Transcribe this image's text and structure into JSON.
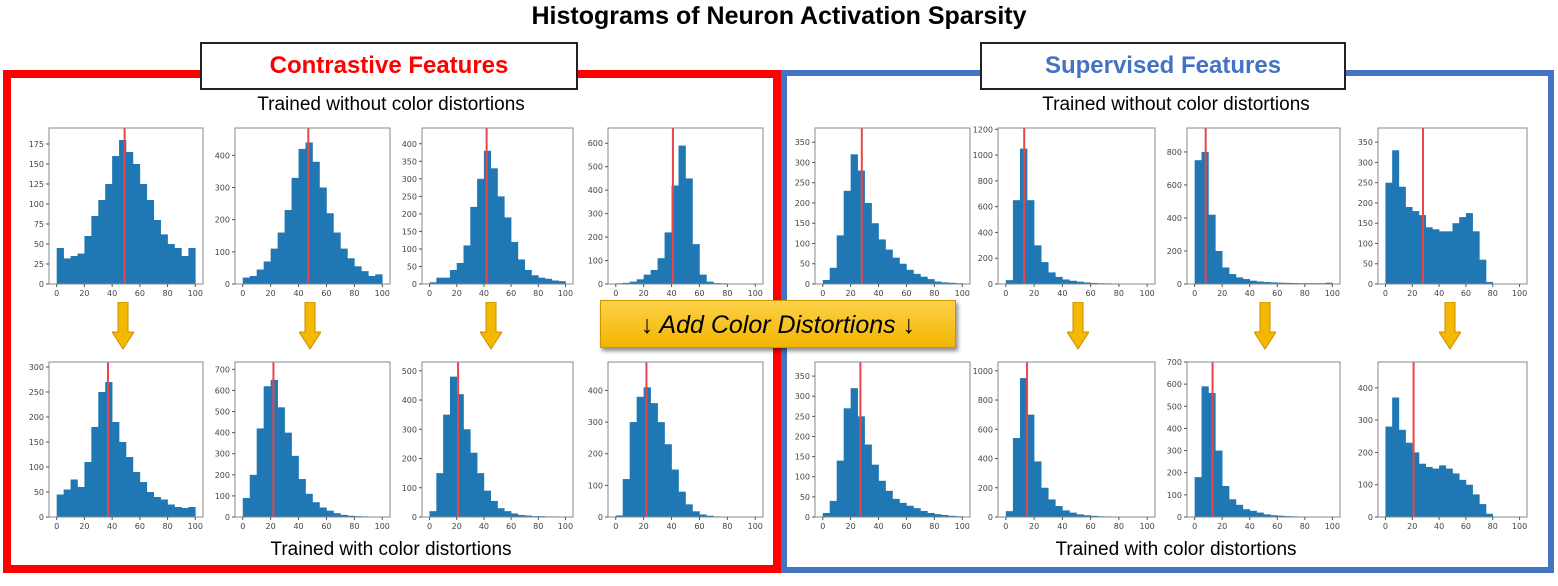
{
  "title": "Histograms of Neuron Activation Sparsity",
  "panels": {
    "contrastive": {
      "label": "Contrastive Features",
      "color": "#ff0000",
      "top_caption": "Trained without color distortions",
      "bottom_caption": "Trained with color distortions"
    },
    "supervised": {
      "label": "Supervised Features",
      "color": "#4472c4",
      "top_caption": "Trained without color distortions",
      "bottom_caption": "Trained with color distortions"
    }
  },
  "banner": {
    "text": "↓ Add Color Distortions ↓",
    "color": "#f5b800"
  },
  "chart_data": [
    {
      "type": "bar",
      "group": "contrastive",
      "row": "without",
      "xlim": [
        0,
        100
      ],
      "xticks": [
        0,
        20,
        40,
        60,
        80,
        100
      ],
      "ylim": [
        0,
        195
      ],
      "yticks": [
        0,
        25,
        50,
        75,
        100,
        125,
        150,
        175
      ],
      "median": 49,
      "bin_width": 5,
      "values": [
        45,
        32,
        35,
        38,
        60,
        85,
        105,
        125,
        160,
        180,
        165,
        150,
        125,
        105,
        80,
        62,
        50,
        45,
        35,
        45
      ]
    },
    {
      "type": "bar",
      "group": "contrastive",
      "row": "without",
      "xlim": [
        0,
        100
      ],
      "xticks": [
        0,
        20,
        40,
        60,
        80,
        100
      ],
      "ylim": [
        0,
        485
      ],
      "yticks": [
        0,
        100,
        200,
        300,
        400
      ],
      "median": 47,
      "bin_width": 5,
      "values": [
        20,
        25,
        45,
        70,
        110,
        160,
        230,
        330,
        420,
        440,
        380,
        300,
        220,
        160,
        110,
        80,
        55,
        40,
        25,
        30
      ]
    },
    {
      "type": "bar",
      "group": "contrastive",
      "row": "without",
      "xlim": [
        0,
        100
      ],
      "xticks": [
        0,
        20,
        40,
        60,
        80,
        100
      ],
      "ylim": [
        0,
        445
      ],
      "yticks": [
        0,
        50,
        100,
        150,
        200,
        250,
        300,
        350,
        400
      ],
      "median": 42,
      "bin_width": 5,
      "values": [
        5,
        18,
        18,
        40,
        60,
        110,
        220,
        300,
        380,
        330,
        250,
        190,
        120,
        70,
        40,
        25,
        18,
        15,
        10,
        8
      ]
    },
    {
      "type": "bar",
      "group": "contrastive",
      "row": "without",
      "xlim": [
        0,
        100
      ],
      "xticks": [
        0,
        20,
        40,
        60,
        80,
        100
      ],
      "ylim": [
        0,
        665
      ],
      "yticks": [
        0,
        100,
        200,
        300,
        400,
        500,
        600
      ],
      "median": 41,
      "bin_width": 5,
      "values": [
        3,
        5,
        10,
        20,
        40,
        60,
        110,
        220,
        420,
        590,
        450,
        170,
        40,
        10,
        4,
        3,
        2,
        2,
        2,
        2
      ]
    },
    {
      "type": "bar",
      "group": "supervised",
      "row": "without",
      "xlim": [
        0,
        100
      ],
      "xticks": [
        0,
        20,
        40,
        60,
        80,
        100
      ],
      "ylim": [
        0,
        385
      ],
      "yticks": [
        0,
        50,
        100,
        150,
        200,
        250,
        300,
        350
      ],
      "median": 28,
      "bin_width": 5,
      "values": [
        10,
        40,
        120,
        230,
        320,
        280,
        200,
        150,
        110,
        85,
        65,
        50,
        35,
        25,
        18,
        12,
        6,
        4,
        3,
        2
      ]
    },
    {
      "type": "bar",
      "group": "supervised",
      "row": "without",
      "xlim": [
        0,
        100
      ],
      "xticks": [
        0,
        20,
        40,
        60,
        80,
        100
      ],
      "ylim": [
        0,
        1210
      ],
      "yticks": [
        0,
        200,
        400,
        600,
        800,
        1000,
        1200
      ],
      "median": 13,
      "bin_width": 5,
      "values": [
        30,
        650,
        1050,
        650,
        300,
        170,
        90,
        55,
        35,
        25,
        18,
        12,
        8,
        6,
        5,
        4,
        3,
        3,
        2,
        2
      ]
    },
    {
      "type": "bar",
      "group": "supervised",
      "row": "without",
      "xlim": [
        0,
        100
      ],
      "xticks": [
        0,
        20,
        40,
        60,
        80,
        100
      ],
      "ylim": [
        0,
        945
      ],
      "yticks": [
        0,
        200,
        400,
        600,
        800
      ],
      "median": 8,
      "bin_width": 5,
      "values": [
        750,
        800,
        420,
        200,
        100,
        60,
        40,
        30,
        20,
        15,
        12,
        10,
        8,
        7,
        6,
        5,
        5,
        5,
        5,
        8
      ]
    },
    {
      "type": "bar",
      "group": "supervised",
      "row": "without",
      "xlim": [
        0,
        100
      ],
      "xticks": [
        0,
        20,
        40,
        60,
        80,
        100
      ],
      "ylim": [
        0,
        385
      ],
      "yticks": [
        0,
        50,
        100,
        150,
        200,
        250,
        300,
        350
      ],
      "median": 28,
      "bin_width": 5,
      "values": [
        250,
        330,
        240,
        190,
        180,
        170,
        140,
        135,
        130,
        130,
        150,
        165,
        175,
        130,
        60,
        5,
        0,
        0,
        0,
        0
      ]
    },
    {
      "type": "bar",
      "group": "contrastive",
      "row": "with",
      "xlim": [
        0,
        100
      ],
      "xticks": [
        0,
        20,
        40,
        60,
        80,
        100
      ],
      "ylim": [
        0,
        310
      ],
      "yticks": [
        0,
        50,
        100,
        150,
        200,
        250,
        300
      ],
      "median": 37,
      "bin_width": 5,
      "values": [
        45,
        55,
        75,
        60,
        110,
        180,
        250,
        270,
        190,
        150,
        120,
        90,
        70,
        50,
        40,
        35,
        25,
        20,
        18,
        20
      ]
    },
    {
      "type": "bar",
      "group": "contrastive",
      "row": "with",
      "xlim": [
        0,
        100
      ],
      "xticks": [
        0,
        20,
        40,
        60,
        80,
        100
      ],
      "ylim": [
        0,
        735
      ],
      "yticks": [
        0,
        100,
        200,
        300,
        400,
        500,
        600,
        700
      ],
      "median": 22,
      "bin_width": 5,
      "values": [
        90,
        200,
        420,
        620,
        650,
        520,
        400,
        290,
        180,
        110,
        70,
        45,
        30,
        18,
        10,
        6,
        4,
        3,
        2,
        1
      ]
    },
    {
      "type": "bar",
      "group": "contrastive",
      "row": "with",
      "xlim": [
        0,
        100
      ],
      "xticks": [
        0,
        20,
        40,
        60,
        80,
        100
      ],
      "ylim": [
        0,
        530
      ],
      "yticks": [
        0,
        100,
        200,
        300,
        400,
        500
      ],
      "median": 21,
      "bin_width": 5,
      "values": [
        20,
        150,
        350,
        480,
        420,
        300,
        220,
        150,
        90,
        55,
        30,
        20,
        12,
        7,
        5,
        3,
        3,
        2,
        2,
        1
      ]
    },
    {
      "type": "bar",
      "group": "contrastive",
      "row": "with",
      "xlim": [
        0,
        100
      ],
      "xticks": [
        0,
        20,
        40,
        60,
        80,
        100
      ],
      "ylim": [
        0,
        490
      ],
      "yticks": [
        0,
        100,
        200,
        300,
        400
      ],
      "median": 22,
      "bin_width": 5,
      "values": [
        5,
        120,
        300,
        380,
        410,
        360,
        300,
        230,
        150,
        80,
        40,
        18,
        8,
        4,
        2,
        1,
        1,
        0,
        0,
        0
      ]
    },
    {
      "type": "bar",
      "group": "supervised",
      "row": "with",
      "xlim": [
        0,
        100
      ],
      "xticks": [
        0,
        20,
        40,
        60,
        80,
        100
      ],
      "ylim": [
        0,
        385
      ],
      "yticks": [
        0,
        50,
        100,
        150,
        200,
        250,
        300,
        350
      ],
      "median": 27,
      "bin_width": 5,
      "values": [
        10,
        40,
        140,
        270,
        320,
        250,
        180,
        130,
        90,
        65,
        45,
        35,
        28,
        22,
        15,
        10,
        7,
        5,
        3,
        2
      ]
    },
    {
      "type": "bar",
      "group": "supervised",
      "row": "with",
      "xlim": [
        0,
        100
      ],
      "xticks": [
        0,
        20,
        40,
        60,
        80,
        100
      ],
      "ylim": [
        0,
        1060
      ],
      "yticks": [
        0,
        200,
        400,
        600,
        800,
        1000
      ],
      "median": 15,
      "bin_width": 5,
      "values": [
        40,
        540,
        950,
        700,
        380,
        200,
        120,
        75,
        45,
        30,
        18,
        12,
        8,
        5,
        4,
        3,
        2,
        2,
        1,
        1
      ]
    },
    {
      "type": "bar",
      "group": "supervised",
      "row": "with",
      "xlim": [
        0,
        100
      ],
      "xticks": [
        0,
        20,
        40,
        60,
        80,
        100
      ],
      "ylim": [
        0,
        700
      ],
      "yticks": [
        0,
        100,
        200,
        300,
        400,
        500,
        600,
        700
      ],
      "median": 13,
      "bin_width": 5,
      "values": [
        180,
        590,
        560,
        300,
        140,
        80,
        55,
        35,
        28,
        20,
        12,
        8,
        6,
        4,
        3,
        2,
        2,
        1,
        1,
        1
      ]
    },
    {
      "type": "bar",
      "group": "supervised",
      "row": "with",
      "xlim": [
        0,
        100
      ],
      "xticks": [
        0,
        20,
        40,
        60,
        80,
        100
      ],
      "ylim": [
        0,
        480
      ],
      "yticks": [
        0,
        100,
        200,
        300,
        400
      ],
      "median": 21,
      "bin_width": 5,
      "values": [
        280,
        370,
        270,
        230,
        200,
        165,
        155,
        150,
        160,
        150,
        135,
        115,
        100,
        70,
        40,
        10,
        0,
        0,
        0,
        0
      ]
    }
  ],
  "colors": {
    "bar": "#1f77b4",
    "median_line": "#e8464a",
    "arrow": "#f5b800"
  }
}
